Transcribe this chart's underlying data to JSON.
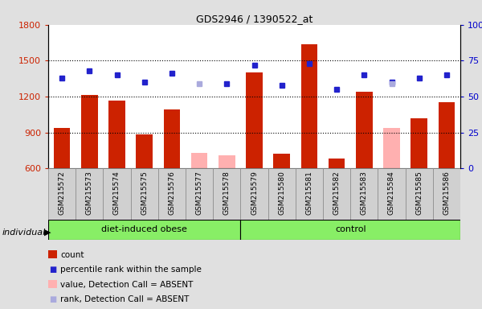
{
  "title": "GDS2946 / 1390522_at",
  "samples": [
    "GSM215572",
    "GSM215573",
    "GSM215574",
    "GSM215575",
    "GSM215576",
    "GSM215577",
    "GSM215578",
    "GSM215579",
    "GSM215580",
    "GSM215581",
    "GSM215582",
    "GSM215583",
    "GSM215584",
    "GSM215585",
    "GSM215586"
  ],
  "counts": [
    940,
    1215,
    1165,
    885,
    1090,
    730,
    710,
    1400,
    720,
    1640,
    680,
    1240,
    940,
    1020,
    1155
  ],
  "absent_value": [
    null,
    null,
    null,
    null,
    null,
    730,
    710,
    null,
    null,
    null,
    null,
    null,
    940,
    null,
    null
  ],
  "ranks_pct": [
    63,
    68,
    65,
    60,
    66,
    null,
    59,
    72,
    58,
    73,
    55,
    65,
    60,
    63,
    65
  ],
  "absent_rank_pct": [
    null,
    null,
    null,
    null,
    null,
    59,
    null,
    null,
    null,
    null,
    null,
    null,
    59,
    null,
    null
  ],
  "group": [
    "obese",
    "obese",
    "obese",
    "obese",
    "obese",
    "obese",
    "obese",
    "control",
    "control",
    "control",
    "control",
    "control",
    "control",
    "control",
    "control"
  ],
  "ylim_left": [
    600,
    1800
  ],
  "ylim_right": [
    0,
    100
  ],
  "yticks_left": [
    600,
    900,
    1200,
    1500,
    1800
  ],
  "yticks_right": [
    0,
    25,
    50,
    75,
    100
  ],
  "bar_color": "#cc2200",
  "absent_bar_color": "#ffb0b0",
  "rank_color": "#2222cc",
  "absent_rank_color": "#aaaadd",
  "obese_label": "diet-induced obese",
  "control_label": "control",
  "individual_label": "individual",
  "legend": [
    {
      "label": "count",
      "color": "#cc2200",
      "type": "bar"
    },
    {
      "label": "percentile rank within the sample",
      "color": "#2222cc",
      "type": "square"
    },
    {
      "label": "value, Detection Call = ABSENT",
      "color": "#ffb0b0",
      "type": "bar"
    },
    {
      "label": "rank, Detection Call = ABSENT",
      "color": "#aaaadd",
      "type": "square"
    }
  ],
  "bg_color": "#e0e0e0",
  "plot_bg": "#ffffff",
  "group_bg": "#88ee66",
  "right_axis_color": "#0000cc",
  "left_axis_color": "#cc2200",
  "obese_count": 7,
  "control_count": 8
}
